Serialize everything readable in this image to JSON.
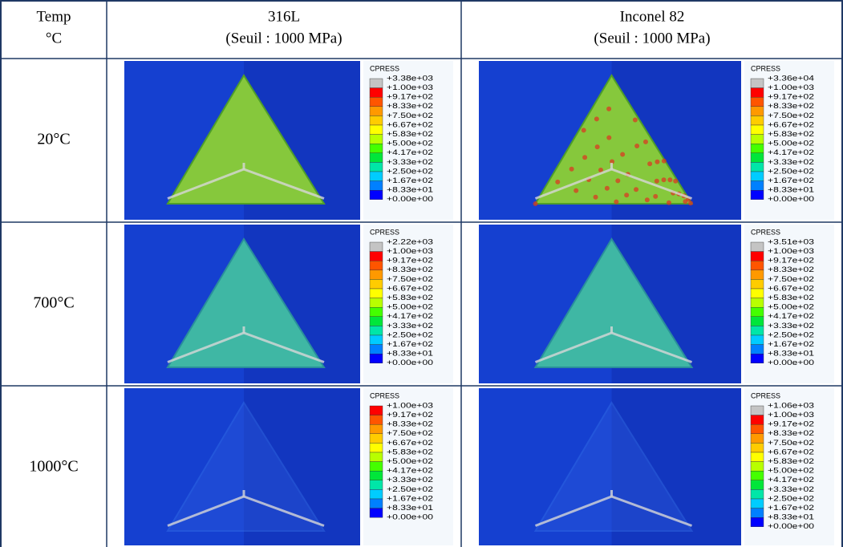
{
  "table": {
    "header": {
      "temp": [
        "Temp",
        "°C"
      ],
      "columns": [
        {
          "name": "316L",
          "threshold": "(Seuil : 1000 MPa)"
        },
        {
          "name": "Inconel 82",
          "threshold": "(Seuil : 1000 MPa)"
        }
      ]
    },
    "rows": [
      {
        "temp": "20°C",
        "cells": [
          {
            "legend_title": "CPRESS",
            "legend_labels": [
              "+3.38e+03",
              "+1.00e+03",
              "+9.17e+02",
              "+8.33e+02",
              "+7.50e+02",
              "+6.67e+02",
              "+5.83e+02",
              "+5.00e+02",
              "+4.17e+02",
              "+3.33e+02",
              "+2.50e+02",
              "+1.67e+02",
              "+8.33e+01",
              "+0.00e+00"
            ]
          },
          {
            "legend_title": "CPRESS",
            "legend_labels": [
              "+3.36e+04",
              "+1.00e+03",
              "+9.17e+02",
              "+8.33e+02",
              "+7.50e+02",
              "+6.67e+02",
              "+5.83e+02",
              "+5.00e+02",
              "+4.17e+02",
              "+3.33e+02",
              "+2.50e+02",
              "+1.67e+02",
              "+8.33e+01",
              "+0.00e+00"
            ]
          }
        ]
      },
      {
        "temp": "700°C",
        "cells": [
          {
            "legend_title": "CPRESS",
            "legend_labels": [
              "+2.22e+03",
              "+1.00e+03",
              "+9.17e+02",
              "+8.33e+02",
              "+7.50e+02",
              "+6.67e+02",
              "+5.83e+02",
              "+5.00e+02",
              "+4.17e+02",
              "+3.33e+02",
              "+2.50e+02",
              "+1.67e+02",
              "+8.33e+01",
              "+0.00e+00"
            ]
          },
          {
            "legend_title": "CPRESS",
            "legend_labels": [
              "+3.51e+03",
              "+1.00e+03",
              "+9.17e+02",
              "+8.33e+02",
              "+7.50e+02",
              "+6.67e+02",
              "+5.83e+02",
              "+5.00e+02",
              "+4.17e+02",
              "+3.33e+02",
              "+2.50e+02",
              "+1.67e+02",
              "+8.33e+01",
              "+0.00e+00"
            ]
          }
        ]
      },
      {
        "temp": "1000°C",
        "cells": [
          {
            "legend_title": "CPRESS",
            "legend_labels": [
              "+1.00e+03",
              "+9.17e+02",
              "+8.33e+02",
              "+7.50e+02",
              "+6.67e+02",
              "+5.83e+02",
              "+5.00e+02",
              "+4.17e+02",
              "+3.33e+02",
              "+2.50e+02",
              "+1.67e+02",
              "+8.33e+01",
              "+0.00e+00"
            ]
          },
          {
            "legend_title": "CPRESS",
            "legend_labels": [
              "+1.06e+03",
              "+1.00e+03",
              "+9.17e+02",
              "+8.33e+02",
              "+7.50e+02",
              "+6.67e+02",
              "+5.83e+02",
              "+5.00e+02",
              "+4.17e+02",
              "+3.33e+02",
              "+2.50e+02",
              "+1.67e+02",
              "+8.33e+01",
              "+0.00e+00"
            ]
          }
        ]
      }
    ]
  }
}
